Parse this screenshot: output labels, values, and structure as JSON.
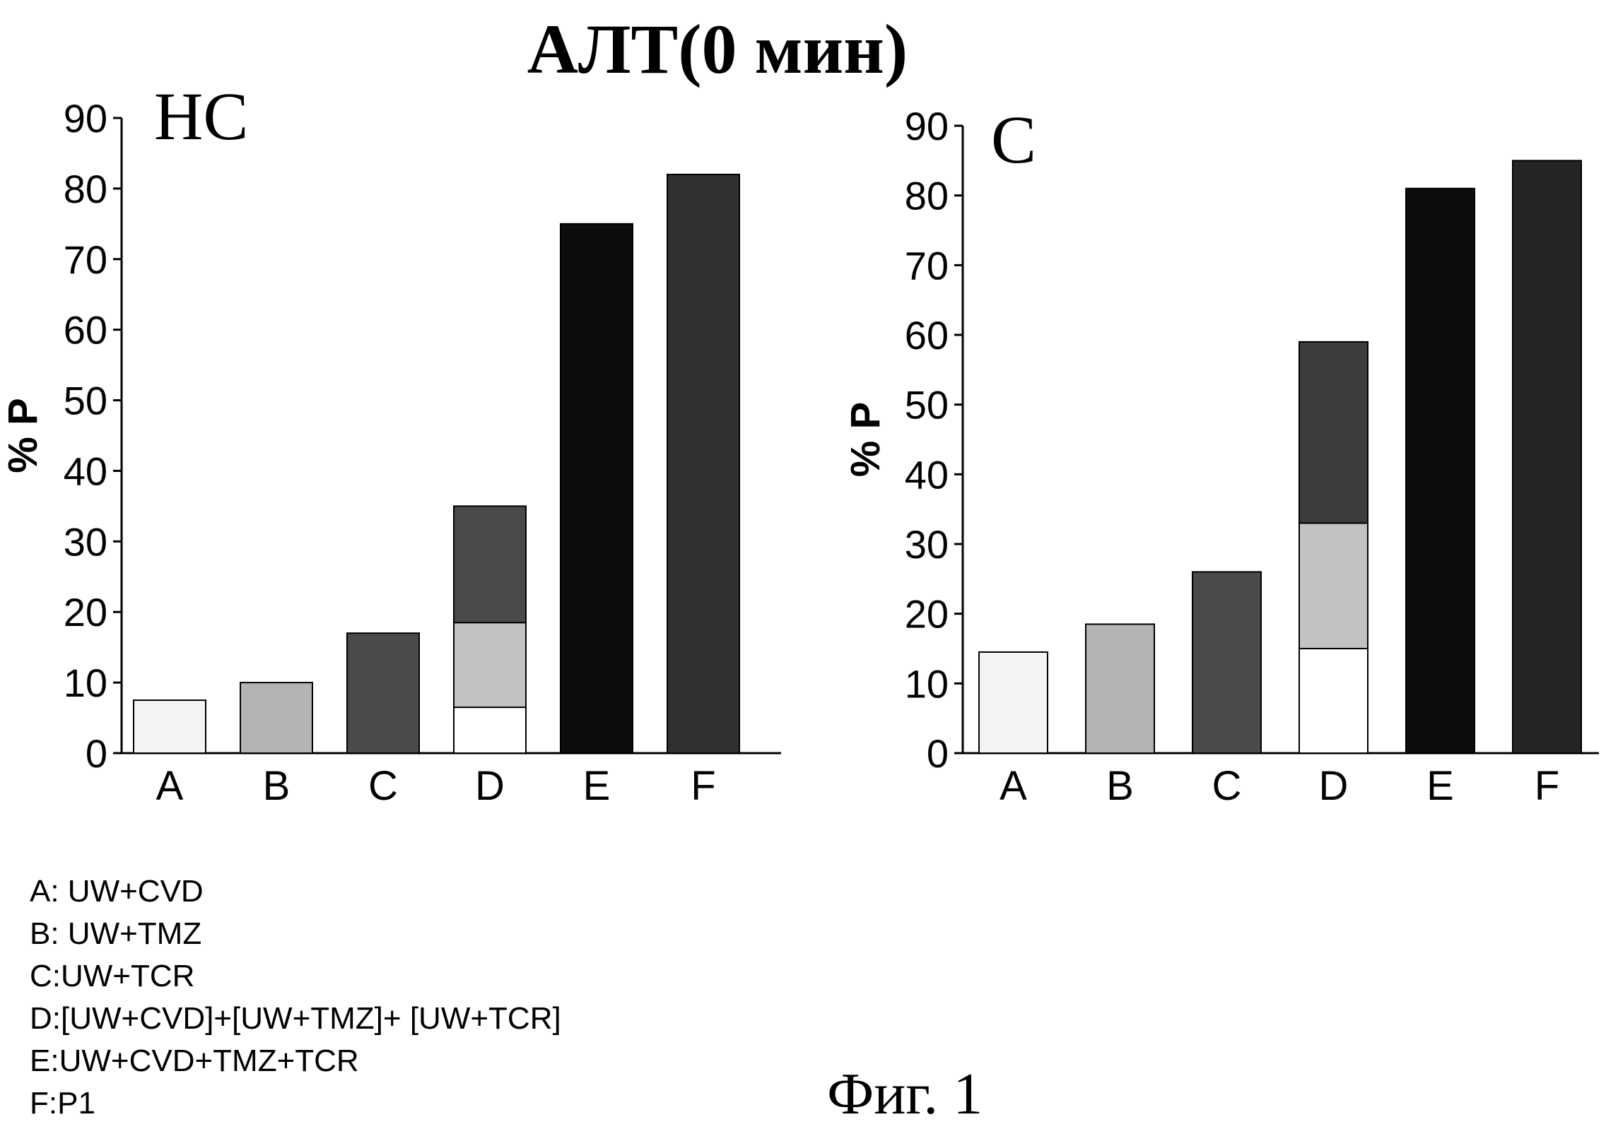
{
  "title": "АЛТ(0 мин)",
  "caption": "Фиг. 1",
  "legend": [
    "A: UW+CVD",
    "B: UW+TMZ",
    "C:UW+TCR",
    "D:[UW+CVD]+[UW+TMZ]+ [UW+TCR]",
    "E:UW+CVD+TMZ+TCR",
    "F:P1"
  ],
  "chart_data": [
    {
      "type": "bar",
      "panel_label": "HC",
      "ylabel": "% P",
      "ylim": [
        0,
        90
      ],
      "yticks": [
        0,
        10,
        20,
        30,
        40,
        50,
        60,
        70,
        80,
        90
      ],
      "categories": [
        "A",
        "B",
        "C",
        "D",
        "E",
        "F"
      ],
      "values": [
        7.5,
        10,
        17,
        35,
        75,
        82
      ],
      "stacked_D": [
        {
          "component": "A",
          "value": 6.5
        },
        {
          "component": "B",
          "value": 12
        },
        {
          "component": "C",
          "value": 16.5
        }
      ],
      "colors": [
        "#f3f3f3",
        "#b4b4b4",
        "#4a4a4a",
        null,
        "#0d0d0d",
        "#303030"
      ],
      "stack_colors": [
        "#ffffff",
        "#c2c2c2",
        "#4a4a4a"
      ]
    },
    {
      "type": "bar",
      "panel_label": "C",
      "ylabel": "% P",
      "ylim": [
        0,
        90
      ],
      "yticks": [
        0,
        10,
        20,
        30,
        40,
        50,
        60,
        70,
        80,
        90
      ],
      "categories": [
        "A",
        "B",
        "C",
        "D",
        "E",
        "F"
      ],
      "values": [
        14.5,
        18.5,
        26,
        59,
        81,
        85
      ],
      "stacked_D": [
        {
          "component": "A",
          "value": 15
        },
        {
          "component": "B",
          "value": 18
        },
        {
          "component": "C",
          "value": 26
        }
      ],
      "colors": [
        "#f3f3f3",
        "#b4b4b4",
        "#4a4a4a",
        null,
        "#0d0d0d",
        "#252525"
      ],
      "stack_colors": [
        "#ffffff",
        "#c2c2c2",
        "#3c3c3c"
      ]
    }
  ]
}
